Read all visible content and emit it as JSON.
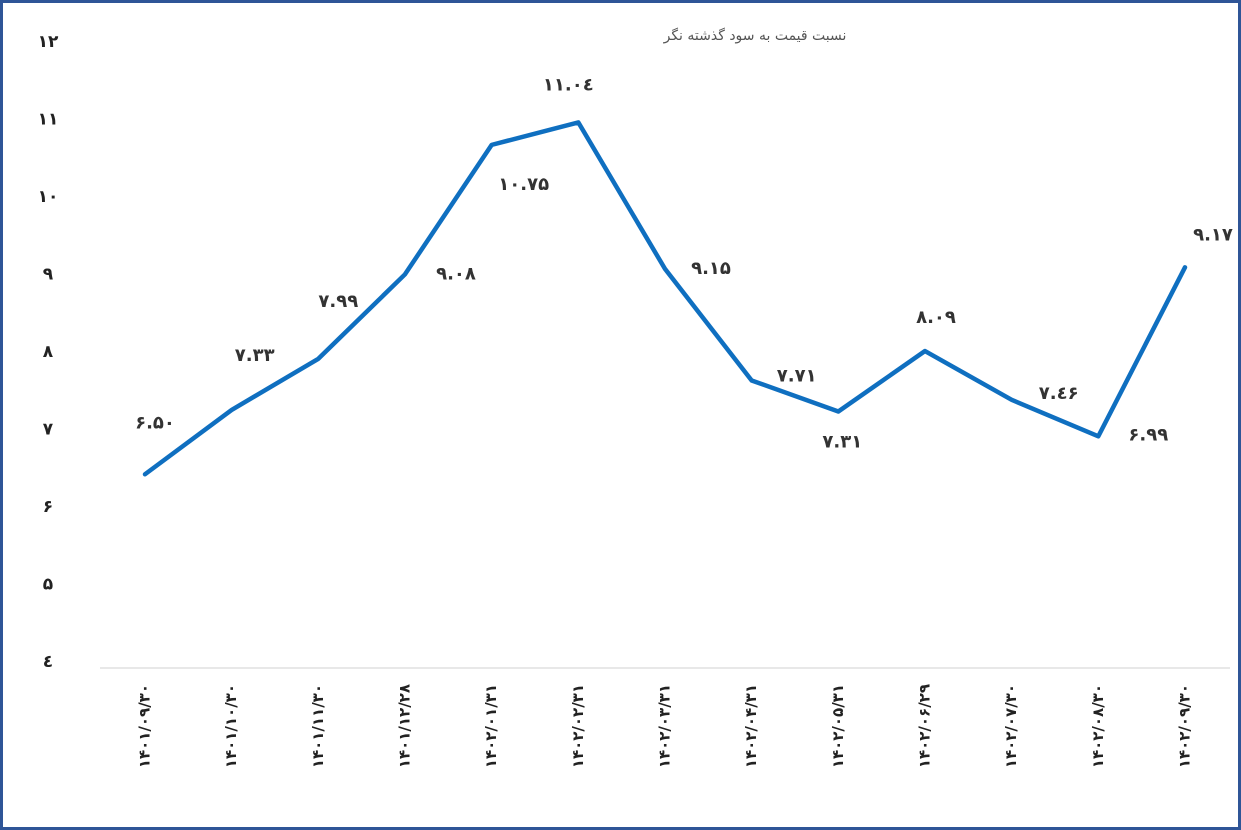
{
  "chart_data": {
    "type": "line",
    "title": "نسبت قیمت به سود گذشته نگر",
    "categories": [
      "۱۴۰۱/۰۹/۳۰",
      "۱۴۰۱/۱۰/۳۰",
      "۱۴۰۱/۱۱/۳۰",
      "۱۴۰۱/۱۲/۲۸",
      "۱۴۰۲/۰۱/۳۱",
      "۱۴۰۲/۰۲/۳۱",
      "۱۴۰۲/۰۳/۳۱",
      "۱۴۰۲/۰۴/۳۱",
      "۱۴۰۲/۰۵/۳۱",
      "۱۴۰۲/۰۶/۲۹",
      "۱۴۰۲/۰۷/۳۰",
      "۱۴۰۲/۰۸/۳۰",
      "۱۴۰۲/۰۹/۳۰"
    ],
    "values": [
      6.5,
      7.33,
      7.99,
      9.08,
      10.75,
      11.04,
      9.15,
      7.71,
      7.31,
      8.09,
      7.46,
      6.99,
      9.17
    ],
    "value_labels": [
      "۶.۵۰",
      "۷.۳۳",
      "۷.۹۹",
      "۹.۰۸",
      "۱۰.۷۵",
      "۱۱.۰٤",
      "۹.۱۵",
      "۷.۷۱",
      "۷.۳۱",
      "۸.۰۹",
      "۷.٤۶",
      "۶.۹۹",
      "۹.۱۷"
    ],
    "color": "#0f6fc0",
    "ylim": [
      4,
      12
    ],
    "yticks": [
      {
        "value": 4,
        "label": "٤"
      },
      {
        "value": 5,
        "label": "۵"
      },
      {
        "value": 6,
        "label": "۶"
      },
      {
        "value": 7,
        "label": "۷"
      },
      {
        "value": 8,
        "label": "۸"
      },
      {
        "value": 9,
        "label": "۹"
      },
      {
        "value": 10,
        "label": "۱۰"
      },
      {
        "value": 11,
        "label": "۱۱"
      },
      {
        "value": 12,
        "label": "۱۲"
      }
    ],
    "grid": false
  }
}
